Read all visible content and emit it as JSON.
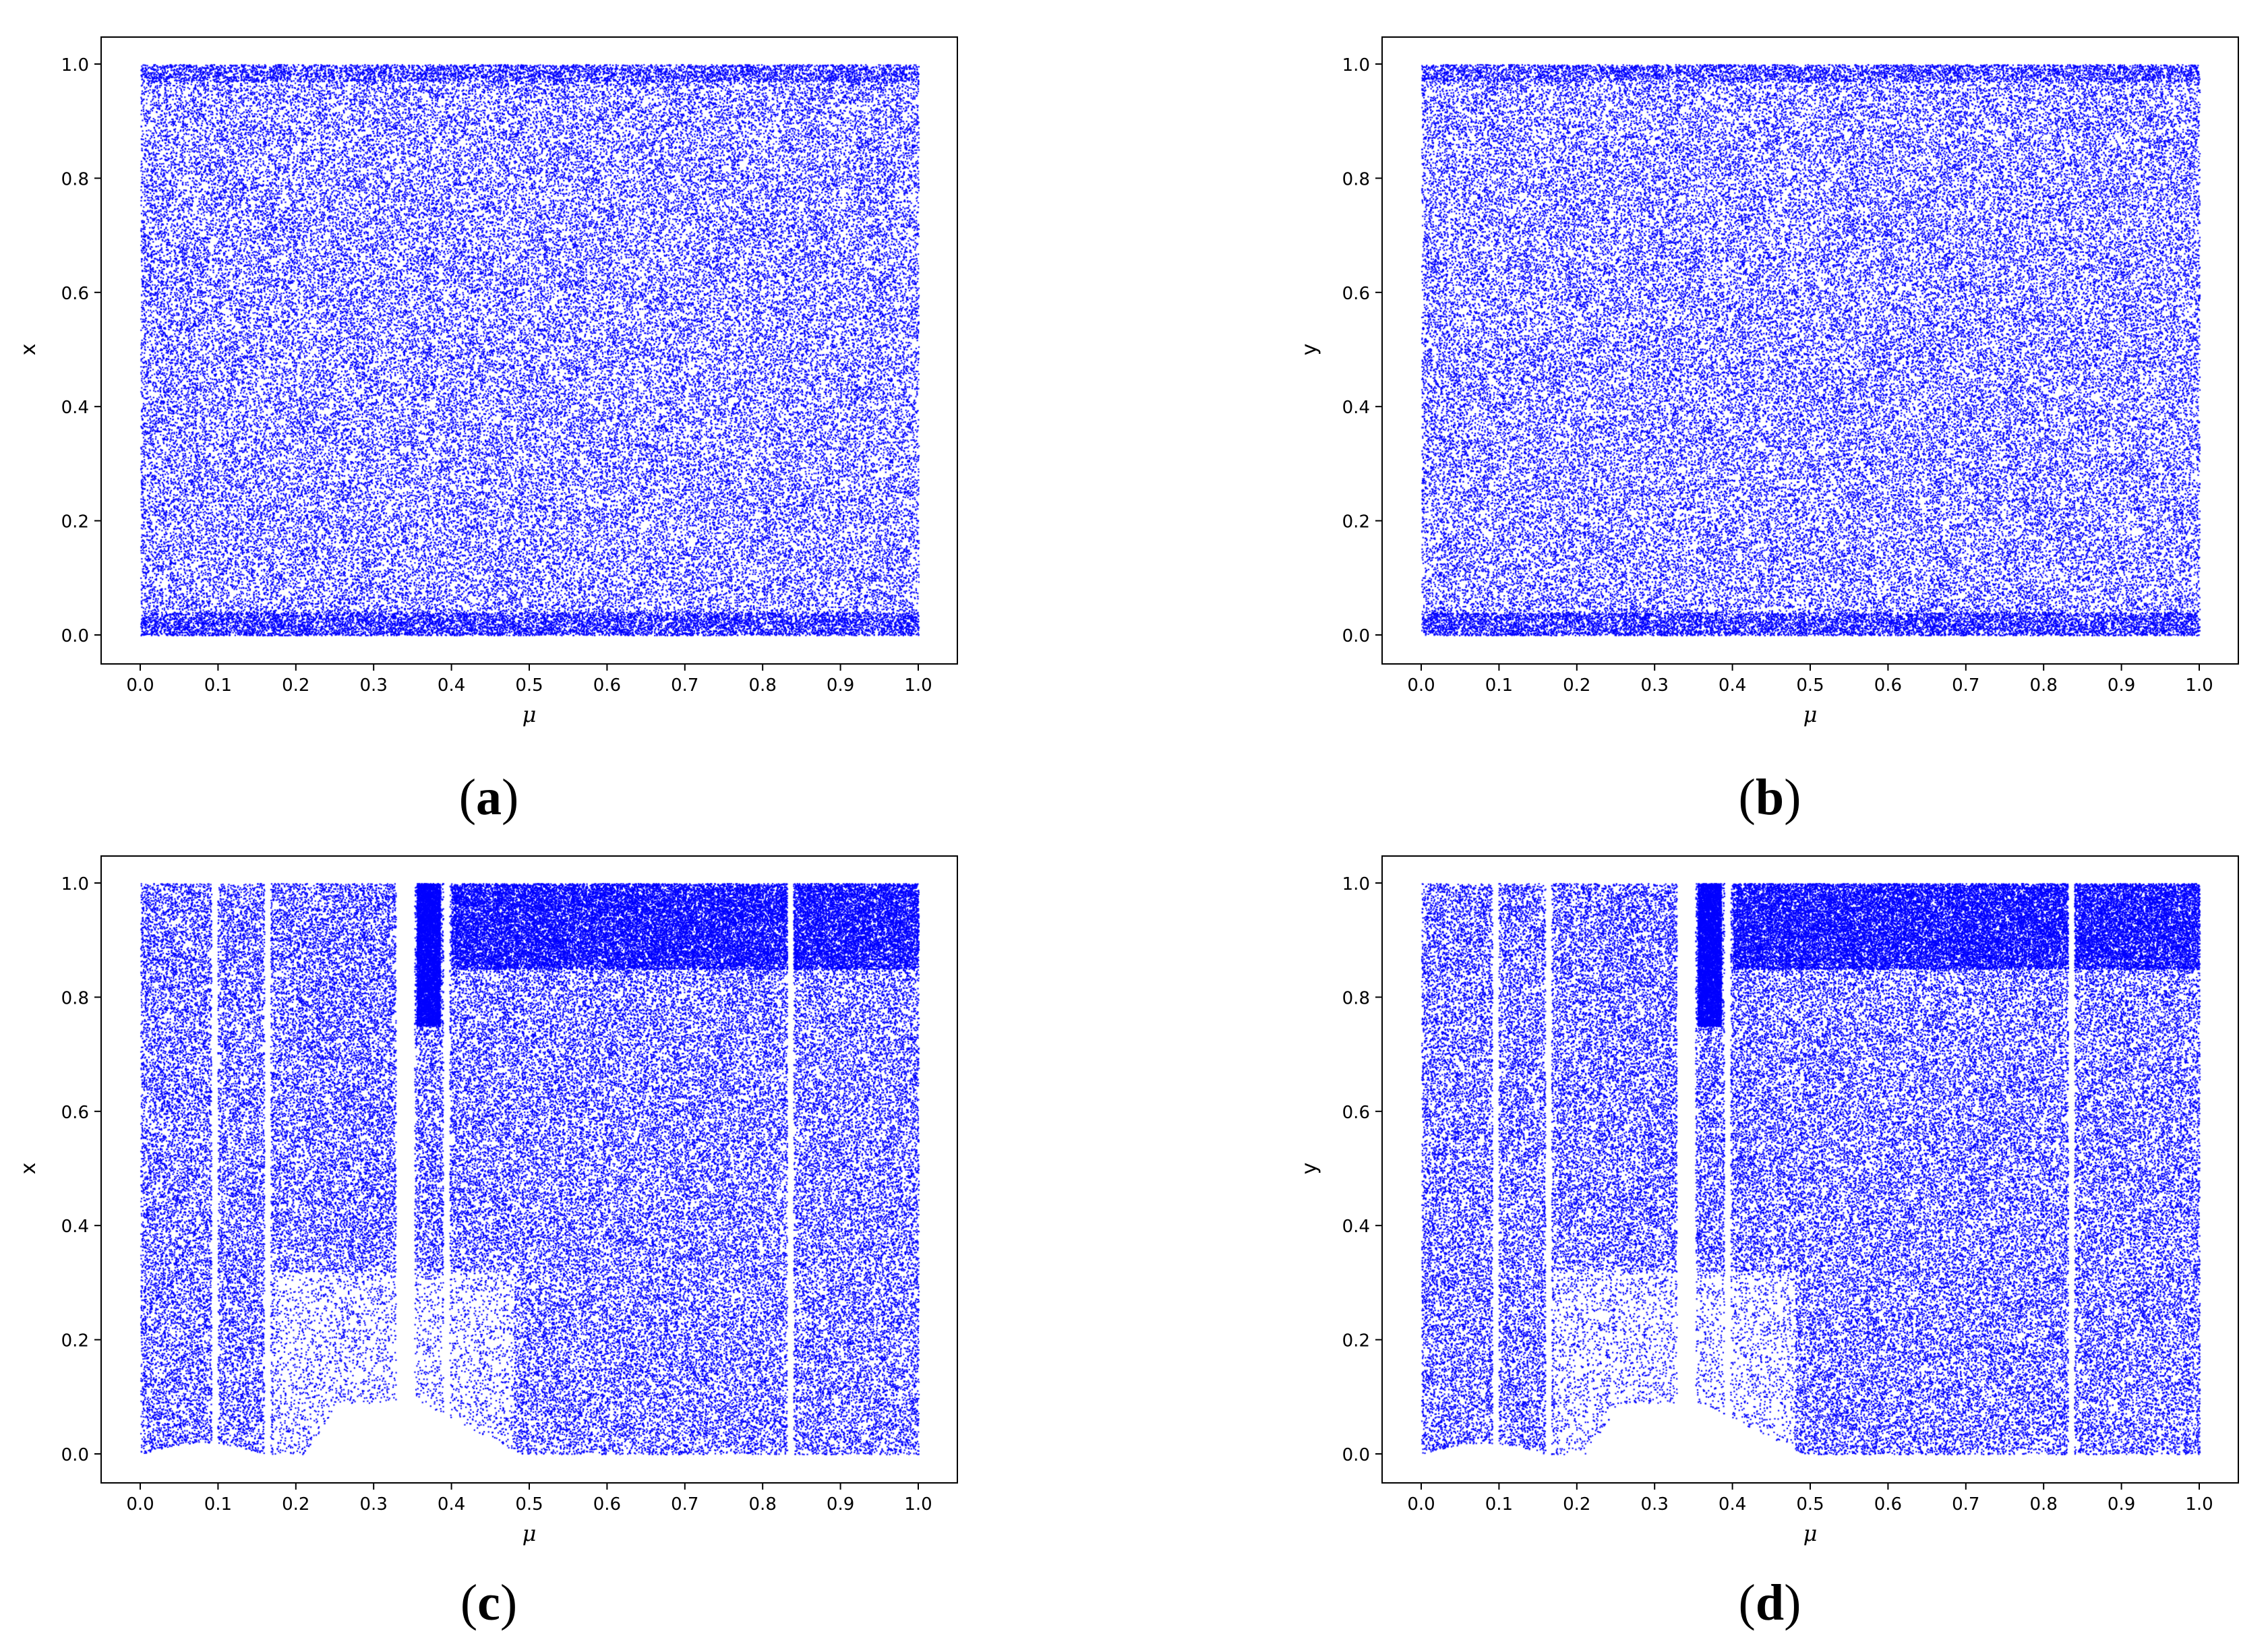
{
  "figure": {
    "point_color": "#0000ff",
    "panels": [
      {
        "id": "a",
        "caption": "a",
        "xlabel": "μ",
        "ylabel": "x",
        "pattern": "uniform",
        "chart_data": {
          "type": "scatter",
          "xlabel": "μ",
          "ylabel": "x",
          "xlim": [
            0.0,
            1.0
          ],
          "ylim": [
            0.0,
            1.0
          ],
          "xticks": [
            "0.0",
            "0.1",
            "0.2",
            "0.3",
            "0.4",
            "0.5",
            "0.6",
            "0.7",
            "0.8",
            "0.9",
            "1.0"
          ],
          "yticks": [
            "0.0",
            "0.2",
            "0.4",
            "0.6",
            "0.8",
            "1.0"
          ],
          "grid": false,
          "description_of_distribution": "points fill the whole [0,1] x [0,1] range uniformly for every μ"
        }
      },
      {
        "id": "b",
        "caption": "b",
        "xlabel": "μ",
        "ylabel": "y",
        "pattern": "uniform",
        "chart_data": {
          "type": "scatter",
          "xlabel": "μ",
          "ylabel": "y",
          "xlim": [
            0.0,
            1.0
          ],
          "ylim": [
            0.0,
            1.0
          ],
          "xticks": [
            "0.0",
            "0.1",
            "0.2",
            "0.3",
            "0.4",
            "0.5",
            "0.6",
            "0.7",
            "0.8",
            "0.9",
            "1.0"
          ],
          "yticks": [
            "0.0",
            "0.2",
            "0.4",
            "0.6",
            "0.8",
            "1.0"
          ],
          "grid": false
        }
      },
      {
        "id": "c",
        "caption": "c",
        "xlabel": "μ",
        "ylabel": "x",
        "pattern": "structured",
        "chart_data": {
          "type": "scatter",
          "xlabel": "μ",
          "ylabel": "x",
          "xlim": [
            0.0,
            1.0
          ],
          "ylim": [
            0.0,
            1.0
          ],
          "xticks": [
            "0.0",
            "0.1",
            "0.2",
            "0.3",
            "0.4",
            "0.5",
            "0.6",
            "0.7",
            "0.8",
            "0.9",
            "1.0"
          ],
          "yticks": [
            "0.0",
            "0.2",
            "0.4",
            "0.6",
            "0.8",
            "1.0"
          ],
          "grid": false,
          "empty_windows_mu": [
            0.095,
            0.163,
            0.34,
            0.393,
            0.835
          ]
        }
      },
      {
        "id": "d",
        "caption": "d",
        "xlabel": "μ",
        "ylabel": "y",
        "pattern": "structured",
        "chart_data": {
          "type": "scatter",
          "xlabel": "μ",
          "ylabel": "y",
          "xlim": [
            0.0,
            1.0
          ],
          "ylim": [
            0.0,
            1.0
          ],
          "xticks": [
            "0.0",
            "0.1",
            "0.2",
            "0.3",
            "0.4",
            "0.5",
            "0.6",
            "0.7",
            "0.8",
            "0.9",
            "1.0"
          ],
          "yticks": [
            "0.0",
            "0.2",
            "0.4",
            "0.6",
            "0.8",
            "1.0"
          ],
          "grid": false,
          "empty_windows_mu": [
            0.095,
            0.163,
            0.34,
            0.393,
            0.835
          ]
        }
      }
    ]
  }
}
